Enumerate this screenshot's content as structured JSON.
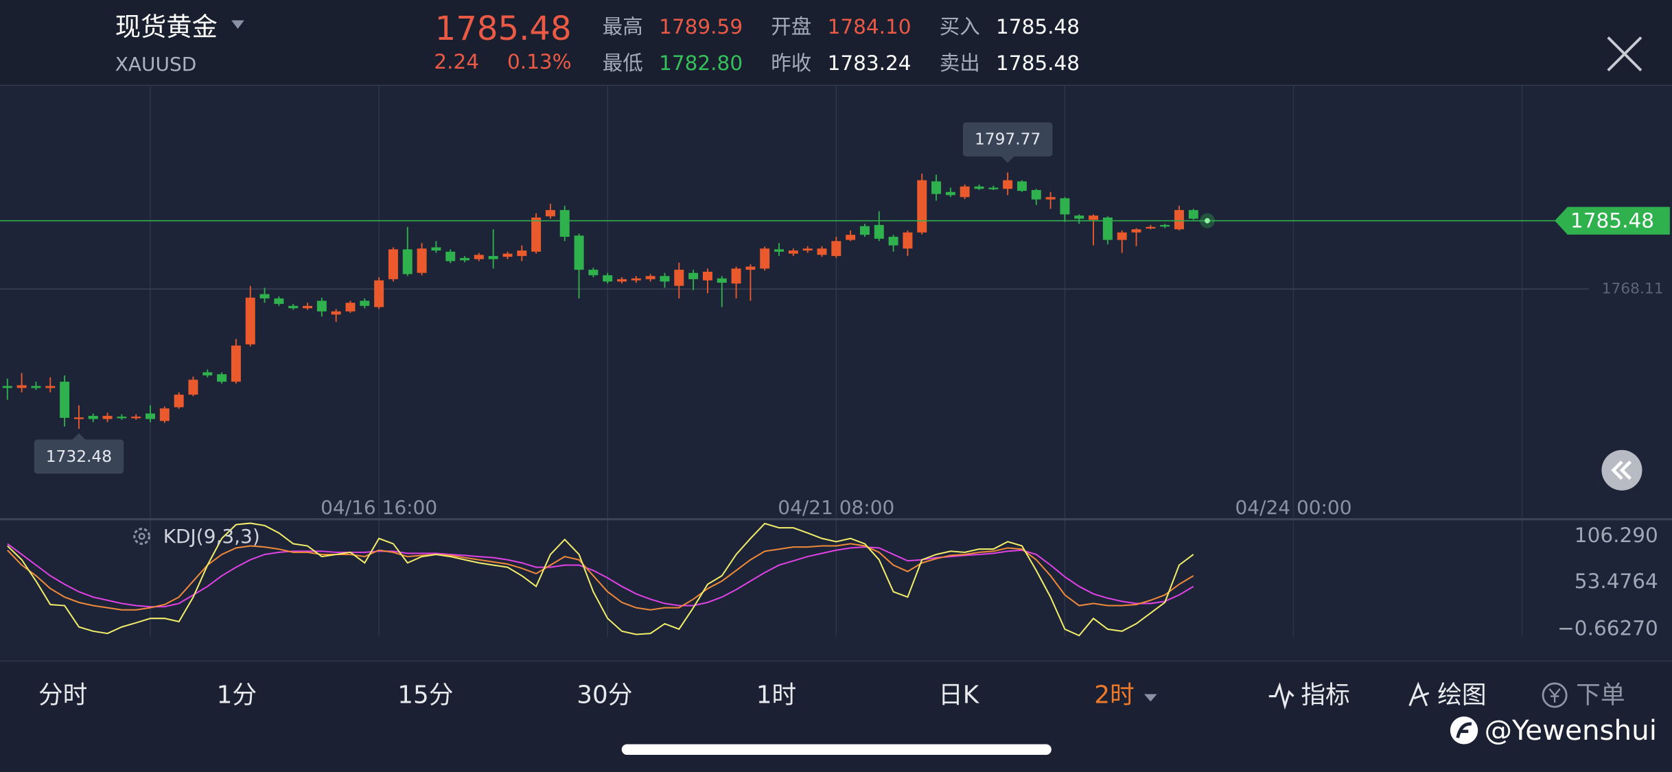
{
  "header": {
    "name": "现货黄金",
    "symbol": "XAUUSD",
    "price": "1785.48",
    "change": "2.24",
    "change_pct": "0.13%",
    "stats": [
      {
        "label": "最高",
        "value": "1789.59",
        "color": "#ea5a45"
      },
      {
        "label": "最低",
        "value": "1782.80",
        "color": "#36c05a"
      },
      {
        "label": "开盘",
        "value": "1784.10",
        "color": "#ea5a45"
      },
      {
        "label": "昨收",
        "value": "1783.24",
        "color": "#ffffff"
      },
      {
        "label": "买入",
        "value": "1785.48",
        "color": "#ffffff"
      },
      {
        "label": "卖出",
        "value": "1785.48",
        "color": "#ffffff"
      }
    ]
  },
  "chart_data": [
    {
      "type": "candlestick",
      "x": [
        0,
        1,
        2,
        3,
        4,
        5,
        6,
        7,
        8,
        9,
        10,
        11,
        12,
        13,
        14,
        15,
        16,
        17,
        18,
        19,
        20,
        21,
        22,
        23,
        24,
        25,
        26,
        27,
        28,
        29,
        30,
        31,
        32,
        33,
        34,
        35,
        36,
        37,
        38,
        39,
        40,
        41,
        42,
        43,
        44,
        45,
        46,
        47,
        48,
        49,
        50,
        51,
        52,
        53,
        54,
        55,
        56,
        57,
        58,
        59,
        60,
        61,
        62,
        63,
        64,
        65,
        66,
        67,
        68,
        69,
        70,
        71,
        72,
        73,
        74,
        75,
        76,
        77,
        78,
        79,
        80,
        81,
        82,
        83
      ],
      "open": [
        1743.4,
        1742.9,
        1743.4,
        1742.9,
        1744.5,
        1735.2,
        1735.8,
        1735.0,
        1735.6,
        1735.3,
        1736.4,
        1734.5,
        1738.0,
        1741.2,
        1746.9,
        1746.4,
        1744.5,
        1754.0,
        1766.8,
        1765.7,
        1763.8,
        1763.2,
        1765.1,
        1761.6,
        1762.4,
        1765.1,
        1763.5,
        1770.6,
        1778.2,
        1772.2,
        1778.7,
        1777.6,
        1776.0,
        1775.7,
        1776.5,
        1776.3,
        1776.5,
        1777.6,
        1786.6,
        1788.2,
        1781.7,
        1773.0,
        1771.6,
        1770.0,
        1770.3,
        1770.6,
        1771.4,
        1768.9,
        1772.2,
        1770.3,
        1770.8,
        1769.5,
        1773.0,
        1773.3,
        1778.2,
        1777.1,
        1777.9,
        1776.8,
        1776.5,
        1780.6,
        1784.1,
        1784.4,
        1781.4,
        1778.4,
        1782.5,
        1795.5,
        1792.8,
        1791.5,
        1794.2,
        1793.9,
        1793.6,
        1795.5,
        1793.3,
        1790.9,
        1791.2,
        1786.8,
        1785.7,
        1786.3,
        1780.6,
        1782.5,
        1783.6,
        1784.4,
        1783.3,
        1788.2
      ],
      "close": [
        1742.9,
        1743.6,
        1742.9,
        1743.4,
        1735.3,
        1735.4,
        1735.0,
        1735.8,
        1735.3,
        1735.6,
        1735.0,
        1737.7,
        1741.2,
        1745.0,
        1746.1,
        1744.5,
        1753.7,
        1765.9,
        1765.7,
        1764.3,
        1763.2,
        1763.8,
        1762.4,
        1762.4,
        1764.6,
        1763.8,
        1770.3,
        1778.2,
        1771.9,
        1778.4,
        1777.9,
        1775.2,
        1775.4,
        1776.8,
        1775.7,
        1777.1,
        1777.9,
        1786.3,
        1788.2,
        1781.4,
        1773.0,
        1771.6,
        1770.0,
        1770.6,
        1770.8,
        1771.4,
        1770.0,
        1773.0,
        1770.6,
        1772.5,
        1769.7,
        1773.3,
        1773.8,
        1778.4,
        1777.6,
        1777.9,
        1778.4,
        1778.4,
        1780.3,
        1781.9,
        1781.9,
        1780.9,
        1779.2,
        1782.5,
        1795.8,
        1792.3,
        1792.0,
        1794.2,
        1793.6,
        1793.6,
        1795.8,
        1793.1,
        1790.9,
        1791.5,
        1787.1,
        1786.0,
        1786.8,
        1780.6,
        1782.5,
        1783.3,
        1783.9,
        1784.1,
        1788.2,
        1786.0
      ],
      "high": [
        1745.3,
        1746.7,
        1744.5,
        1745.6,
        1746.1,
        1738.5,
        1736.4,
        1736.6,
        1736.2,
        1736.2,
        1738.5,
        1738.2,
        1741.8,
        1745.8,
        1747.6,
        1746.9,
        1755.4,
        1768.9,
        1768.4,
        1766.2,
        1764.3,
        1764.6,
        1765.9,
        1763.0,
        1765.1,
        1765.7,
        1771.1,
        1778.7,
        1783.9,
        1779.8,
        1780.3,
        1778.2,
        1776.5,
        1777.3,
        1783.3,
        1777.6,
        1779.2,
        1787.4,
        1789.8,
        1789.3,
        1782.2,
        1773.5,
        1772.2,
        1771.1,
        1771.4,
        1771.9,
        1772.2,
        1774.8,
        1773.0,
        1773.3,
        1771.4,
        1773.8,
        1774.4,
        1778.9,
        1779.8,
        1778.4,
        1779.0,
        1779.0,
        1781.4,
        1783.0,
        1784.7,
        1787.9,
        1781.9,
        1783.0,
        1797.5,
        1797.2,
        1793.9,
        1794.7,
        1794.7,
        1794.4,
        1797.77,
        1795.8,
        1793.6,
        1792.8,
        1791.5,
        1787.1,
        1787.1,
        1786.6,
        1783.0,
        1783.6,
        1784.4,
        1784.7,
        1789.3,
        1788.5
      ],
      "low": [
        1739.9,
        1741.8,
        1742.4,
        1741.8,
        1733.1,
        1732.48,
        1734.2,
        1734.2,
        1734.8,
        1734.8,
        1734.2,
        1734.0,
        1737.6,
        1740.8,
        1745.6,
        1744.0,
        1744.0,
        1753.5,
        1764.6,
        1763.8,
        1762.8,
        1762.8,
        1761.1,
        1759.7,
        1762.0,
        1763.2,
        1763.0,
        1770.0,
        1771.4,
        1771.6,
        1777.3,
        1774.7,
        1774.9,
        1775.2,
        1773.3,
        1775.7,
        1775.2,
        1777.1,
        1786.0,
        1780.3,
        1765.7,
        1771.1,
        1769.5,
        1769.5,
        1769.7,
        1770.0,
        1768.4,
        1765.7,
        1767.8,
        1767.0,
        1763.5,
        1765.7,
        1765.1,
        1772.8,
        1776.5,
        1776.5,
        1777.3,
        1776.3,
        1776.0,
        1780.3,
        1781.4,
        1780.3,
        1777.6,
        1776.5,
        1782.0,
        1790.6,
        1791.5,
        1791.0,
        1793.3,
        1793.3,
        1792.0,
        1792.8,
        1789.5,
        1788.5,
        1785.2,
        1784.7,
        1779.2,
        1779.5,
        1777.3,
        1779.0,
        1783.3,
        1783.6,
        1783.0,
        1785.7
      ],
      "up_color": "#ea5a2c",
      "down_color": "#2fb14d",
      "xlim": [
        -0.52,
        116.49
      ],
      "ylim": [
        1716.26,
        1819.95
      ],
      "yticks": [
        1768.11
      ],
      "xticks": [
        {
          "value": 26,
          "label": "04/16 16:00"
        },
        {
          "value": 58,
          "label": "04/21 08:00"
        },
        {
          "value": 90,
          "label": "04/24 00:00"
        }
      ],
      "xgrid": [
        10,
        26,
        42,
        58,
        74,
        90,
        106
      ],
      "last_price": 1785.48,
      "last_price_color": "#2fb14d",
      "annotations": [
        {
          "x": 70,
          "value": 1797.77
        },
        {
          "x": 5,
          "value": 1732.48
        }
      ]
    },
    {
      "type": "line",
      "title": "KDJ(9,3,3)",
      "x": [
        0,
        1,
        2,
        3,
        4,
        5,
        6,
        7,
        8,
        9,
        10,
        11,
        12,
        13,
        14,
        15,
        16,
        17,
        18,
        19,
        20,
        21,
        22,
        23,
        24,
        25,
        26,
        27,
        28,
        29,
        30,
        31,
        32,
        33,
        34,
        35,
        36,
        37,
        38,
        39,
        40,
        41,
        42,
        43,
        44,
        45,
        46,
        47,
        48,
        49,
        50,
        51,
        52,
        53,
        54,
        55,
        56,
        57,
        58,
        59,
        60,
        61,
        62,
        63,
        64,
        65,
        66,
        67,
        68,
        69,
        70,
        71,
        72,
        73,
        74,
        75,
        76,
        77,
        78,
        79,
        80,
        81,
        82,
        83
      ],
      "xlim": [
        -0.52,
        116.49
      ],
      "ylim": [
        -10.4,
        121.0
      ],
      "yticks": [
        {
          "value": 106.29,
          "label": "106.290"
        },
        53.4764,
        {
          "value": -0.6627,
          "label": "−0.66270"
        }
      ],
      "xgrid": [
        10,
        26,
        42,
        58,
        74,
        90,
        106
      ],
      "series": [
        {
          "color": "#e042e6",
          "values": [
            96.5,
            84.2,
            71.9,
            59.6,
            49.8,
            41.2,
            35.0,
            31.4,
            27.7,
            25.2,
            24.0,
            24.0,
            27.7,
            37.5,
            47.3,
            59.6,
            69.4,
            78.0,
            84.2,
            86.6,
            87.9,
            87.9,
            87.9,
            86.6,
            86.6,
            86.6,
            87.9,
            87.9,
            85.4,
            85.4,
            85.4,
            84.2,
            83.0,
            81.7,
            80.5,
            78.0,
            74.4,
            69.4,
            69.4,
            71.9,
            71.9,
            65.7,
            57.2,
            47.3,
            38.7,
            32.6,
            27.7,
            25.2,
            25.2,
            28.9,
            35.0,
            43.6,
            53.5,
            63.3,
            71.9,
            76.8,
            81.7,
            85.4,
            89.1,
            91.6,
            92.8,
            91.6,
            84.2,
            76.8,
            78.0,
            80.5,
            81.7,
            83.0,
            84.2,
            85.4,
            87.9,
            89.1,
            84.2,
            71.9,
            58.4,
            47.3,
            38.7,
            33.8,
            30.1,
            27.7,
            27.7,
            30.1,
            37.5,
            47.3
          ]
        },
        {
          "color": "#f08a3a",
          "values": [
            89.1,
            71.9,
            59.6,
            44.9,
            35.0,
            28.9,
            25.2,
            22.7,
            20.3,
            20.3,
            22.7,
            26.4,
            35.0,
            53.5,
            71.9,
            84.2,
            91.6,
            94.0,
            92.8,
            90.3,
            86.6,
            86.6,
            84.2,
            84.2,
            84.2,
            81.7,
            89.1,
            86.6,
            81.7,
            83.0,
            84.2,
            83.0,
            80.5,
            78.0,
            75.6,
            73.1,
            68.2,
            62.1,
            71.9,
            81.7,
            78.0,
            59.6,
            41.2,
            28.9,
            22.7,
            20.3,
            22.7,
            22.7,
            32.6,
            44.9,
            53.5,
            65.7,
            78.0,
            87.9,
            90.3,
            92.8,
            92.8,
            94.0,
            94.0,
            96.5,
            94.0,
            86.6,
            71.9,
            64.5,
            74.4,
            79.3,
            83.0,
            84.2,
            86.6,
            87.9,
            91.6,
            90.3,
            78.0,
            59.6,
            37.5,
            25.2,
            27.7,
            25.2,
            25.2,
            26.4,
            31.4,
            37.5,
            49.8,
            59.6
          ]
        },
        {
          "color": "#f2ee6a",
          "values": [
            94.0,
            78.0,
            53.5,
            26.4,
            25.2,
            0.6,
            -4.3,
            -6.8,
            0.6,
            5.5,
            10.5,
            10.5,
            6.8,
            35.0,
            71.9,
            102.6,
            118.6,
            120.2,
            117.4,
            108.8,
            96.5,
            94.0,
            81.7,
            84.2,
            86.6,
            74.4,
            102.6,
            96.5,
            74.4,
            81.7,
            84.2,
            81.7,
            78.0,
            74.4,
            71.9,
            69.4,
            59.6,
            47.3,
            84.2,
            101.4,
            84.2,
            41.2,
            10.5,
            -4.3,
            -8.0,
            -6.8,
            4.3,
            -1.9,
            22.7,
            49.8,
            59.6,
            84.2,
            102.6,
            119.8,
            114.9,
            114.9,
            108.8,
            102.6,
            98.9,
            102.6,
            96.5,
            78.0,
            41.2,
            35.0,
            78.0,
            84.2,
            87.9,
            86.6,
            90.3,
            90.3,
            98.9,
            94.0,
            65.7,
            35.0,
            -1.9,
            -9.3,
            10.5,
            -1.9,
            -4.3,
            4.3,
            16.6,
            28.9,
            71.9,
            84.2
          ]
        }
      ]
    }
  ],
  "tabs": [
    "分时",
    "1分",
    "15分",
    "30分",
    "1时",
    "日K",
    "2时"
  ],
  "tools": [
    "指标",
    "绘图",
    "下单"
  ],
  "watermark": "@Yewenshui"
}
